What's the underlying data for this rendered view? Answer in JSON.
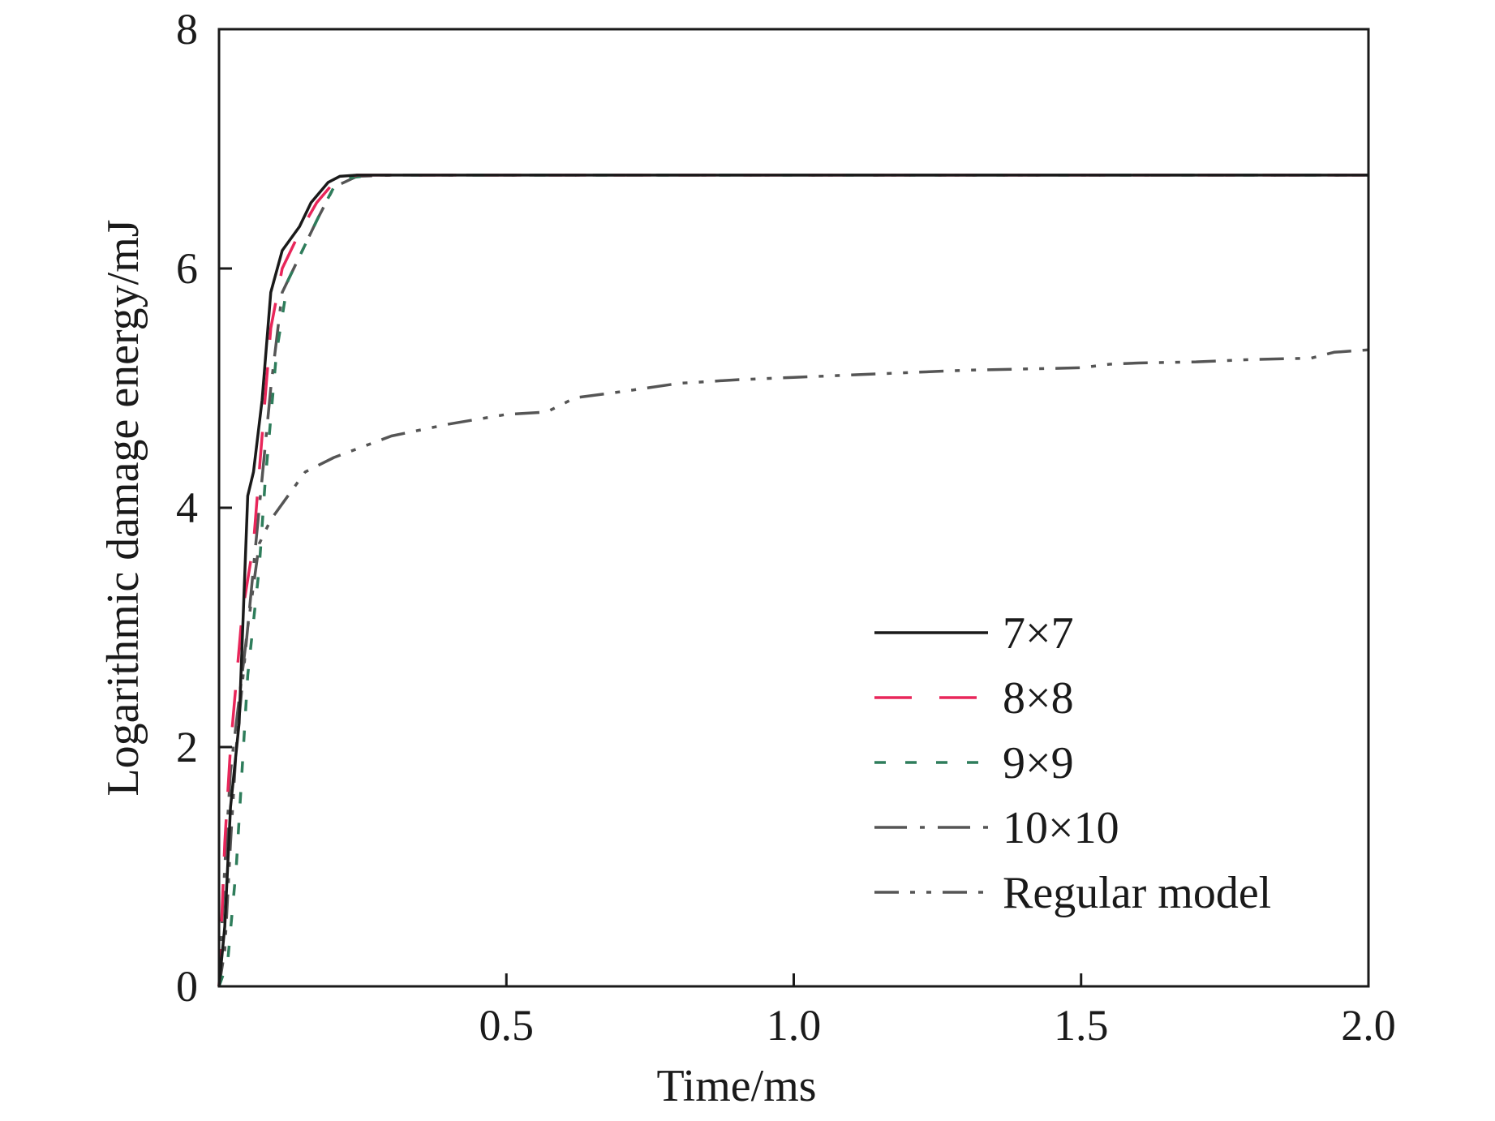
{
  "chart_data": {
    "type": "line",
    "title": "",
    "xlabel": "Time/ms",
    "ylabel": "Logarithmic damage energy/mJ",
    "xlim": [
      0,
      2.0
    ],
    "ylim": [
      0,
      8
    ],
    "xticks": [
      0.5,
      1.0,
      1.5,
      2.0
    ],
    "xtick_labels": [
      "0.5",
      "1.0",
      "1.5",
      "2.0"
    ],
    "yticks": [
      0,
      2,
      4,
      6,
      8
    ],
    "ytick_labels": [
      "0",
      "2",
      "4",
      "6",
      "8"
    ],
    "grid": false,
    "legend_position": "lower-right",
    "series": [
      {
        "name": "7×7",
        "color": "#1a1a1a",
        "dash": "solid",
        "x": [
          0.0,
          0.01,
          0.02,
          0.035,
          0.05,
          0.06,
          0.075,
          0.09,
          0.11,
          0.14,
          0.16,
          0.19,
          0.21,
          0.24,
          0.3,
          0.5,
          1.0,
          1.5,
          2.0
        ],
        "y": [
          0.0,
          0.5,
          1.5,
          2.2,
          4.1,
          4.3,
          4.9,
          5.8,
          6.15,
          6.35,
          6.55,
          6.72,
          6.77,
          6.78,
          6.78,
          6.78,
          6.78,
          6.78,
          6.78
        ]
      },
      {
        "name": "8×8",
        "color": "#e8265a",
        "dash": "long-dash",
        "x": [
          0.0,
          0.01,
          0.02,
          0.04,
          0.06,
          0.075,
          0.09,
          0.11,
          0.14,
          0.17,
          0.2,
          0.24,
          0.3,
          0.5,
          1.0,
          1.5,
          2.0
        ],
        "y": [
          0.0,
          1.2,
          2.0,
          3.1,
          3.7,
          4.6,
          5.5,
          6.0,
          6.3,
          6.55,
          6.72,
          6.78,
          6.78,
          6.78,
          6.78,
          6.78,
          6.78
        ]
      },
      {
        "name": "9×9",
        "color": "#2e7d5b",
        "dash": "short-dash",
        "x": [
          0.0,
          0.015,
          0.03,
          0.05,
          0.07,
          0.08,
          0.1,
          0.12,
          0.15,
          0.18,
          0.2,
          0.23,
          0.27,
          0.3,
          0.5,
          1.0,
          1.5,
          2.0
        ],
        "y": [
          0.0,
          0.2,
          1.0,
          2.6,
          3.5,
          4.2,
          5.3,
          5.9,
          6.2,
          6.5,
          6.68,
          6.76,
          6.78,
          6.78,
          6.78,
          6.78,
          6.78,
          6.78
        ]
      },
      {
        "name": "10×10",
        "color": "#555555",
        "dash": "dash-dot",
        "x": [
          0.0,
          0.01,
          0.02,
          0.035,
          0.05,
          0.07,
          0.09,
          0.11,
          0.14,
          0.17,
          0.2,
          0.24,
          0.3,
          0.5,
          1.0,
          1.5,
          2.0
        ],
        "y": [
          0.0,
          1.0,
          1.8,
          2.4,
          3.0,
          4.0,
          5.0,
          5.8,
          6.1,
          6.4,
          6.68,
          6.77,
          6.78,
          6.78,
          6.78,
          6.78,
          6.78
        ]
      },
      {
        "name": "Regular model",
        "color": "#555555",
        "dash": "dash-dot-dot",
        "x": [
          0.0,
          0.01,
          0.02,
          0.03,
          0.05,
          0.07,
          0.09,
          0.12,
          0.15,
          0.2,
          0.3,
          0.4,
          0.5,
          0.57,
          0.62,
          0.7,
          0.8,
          0.9,
          1.0,
          1.1,
          1.2,
          1.3,
          1.4,
          1.5,
          1.55,
          1.6,
          1.7,
          1.8,
          1.9,
          1.94,
          1.97,
          2.0
        ],
        "y": [
          0.0,
          0.3,
          1.2,
          2.0,
          3.0,
          3.7,
          3.9,
          4.1,
          4.3,
          4.42,
          4.6,
          4.7,
          4.78,
          4.8,
          4.92,
          4.97,
          5.04,
          5.07,
          5.09,
          5.11,
          5.13,
          5.15,
          5.16,
          5.17,
          5.2,
          5.21,
          5.22,
          5.24,
          5.25,
          5.3,
          5.31,
          5.32
        ]
      }
    ]
  }
}
